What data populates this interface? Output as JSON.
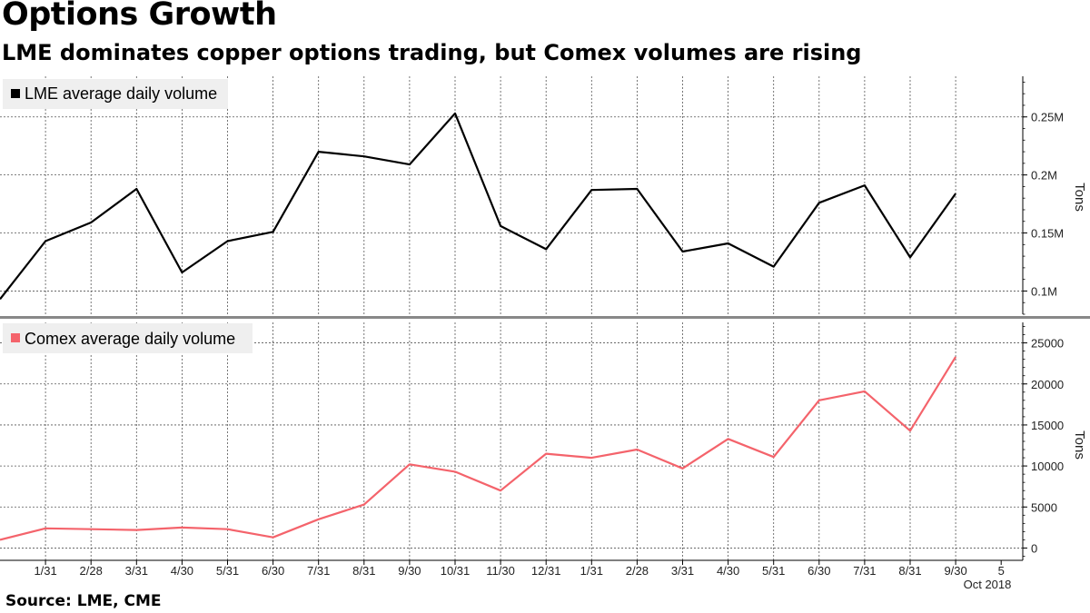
{
  "title": "Options Growth",
  "subtitle": "LME dominates copper options trading, but Comex volumes are rising",
  "source": "Source: LME, CME",
  "x_labels": [
    "1/31",
    "2/28",
    "3/31",
    "4/30",
    "5/31",
    "6/30",
    "7/31",
    "8/31",
    "9/30",
    "10/31",
    "11/30",
    "12/31",
    "1/31",
    "2/28",
    "3/31",
    "4/30",
    "5/31",
    "6/30",
    "7/31",
    "8/31",
    "9/30",
    "5"
  ],
  "x_sublabel": "Oct 2018",
  "chart_data": [
    {
      "type": "line",
      "legend": "LME average daily volume",
      "ylabel": "Tons",
      "color": "#000000",
      "ylim": [
        80000,
        285000
      ],
      "yticks": [
        100000,
        150000,
        200000,
        250000
      ],
      "yticklabels": [
        "0.1M",
        "0.15M",
        "0.2M",
        "0.25M"
      ],
      "grid": true,
      "legend_position": "top-left",
      "values": [
        93000,
        143000,
        159000,
        188000,
        116000,
        143000,
        151000,
        220000,
        216000,
        209000,
        253000,
        156000,
        136000,
        187000,
        188000,
        134000,
        141000,
        121000,
        176000,
        191000,
        129000,
        184000
      ]
    },
    {
      "type": "line",
      "legend": "Comex average daily volume",
      "ylabel": "Tons",
      "color": "#f4636b",
      "ylim": [
        -1500,
        27500
      ],
      "yticks": [
        0,
        5000,
        10000,
        15000,
        20000,
        25000
      ],
      "yticklabels": [
        "0",
        "5000",
        "10000",
        "15000",
        "20000",
        "25000"
      ],
      "grid": true,
      "legend_position": "top-left",
      "values": [
        1000,
        2400,
        2300,
        2200,
        2500,
        2300,
        1300,
        3500,
        5300,
        10200,
        9300,
        7000,
        11500,
        11000,
        12000,
        9700,
        13300,
        11100,
        18000,
        19100,
        14300,
        23300
      ]
    }
  ]
}
